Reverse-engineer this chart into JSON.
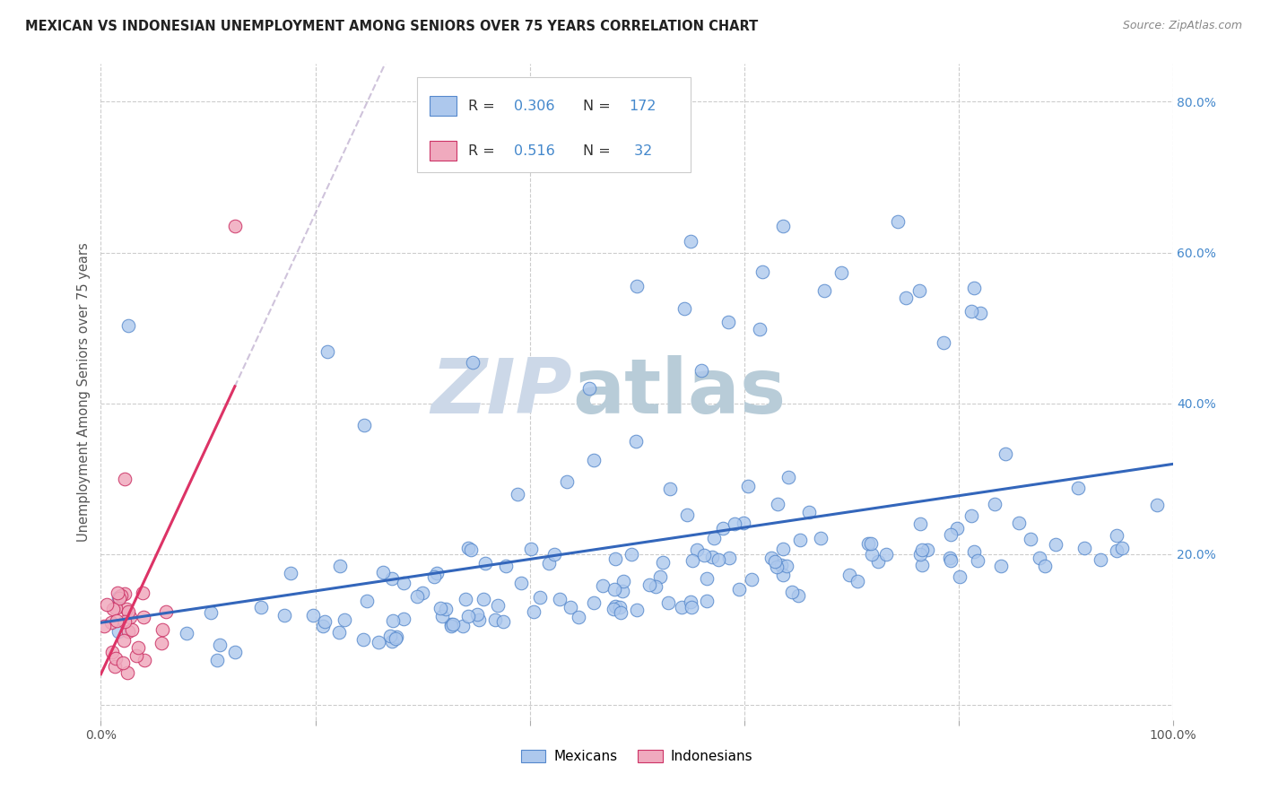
{
  "title": "MEXICAN VS INDONESIAN UNEMPLOYMENT AMONG SENIORS OVER 75 YEARS CORRELATION CHART",
  "source": "Source: ZipAtlas.com",
  "ylabel": "Unemployment Among Seniors over 75 years",
  "xlim": [
    0.0,
    1.0
  ],
  "ylim": [
    -0.02,
    0.85
  ],
  "xtick_positions": [
    0.0,
    0.2,
    0.4,
    0.6,
    0.8,
    1.0
  ],
  "xticklabels": [
    "0.0%",
    "",
    "",
    "",
    "",
    "100.0%"
  ],
  "ytick_positions": [
    0.0,
    0.2,
    0.4,
    0.6,
    0.8
  ],
  "yticklabels": [
    "",
    "20.0%",
    "40.0%",
    "60.0%",
    "80.0%"
  ],
  "mexican_color": "#adc8ed",
  "indonesian_color": "#f0aabe",
  "mexican_edge_color": "#5588cc",
  "indonesian_edge_color": "#cc3366",
  "mexican_line_color": "#3366bb",
  "indonesian_line_color": "#dd3366",
  "indonesian_dash_color": "#ccbbcc",
  "watermark_zip": "ZIP",
  "watermark_atlas": "atlas",
  "watermark_color": "#ccd8e8",
  "background_color": "#ffffff",
  "grid_color": "#cccccc",
  "ytick_color": "#4488cc",
  "xtick_color": "#555555",
  "title_color": "#222222",
  "source_color": "#888888",
  "ylabel_color": "#555555",
  "legend_border_color": "#cccccc",
  "r_n_color": "#4488cc",
  "mexican_R": 0.306,
  "mexican_N": 172,
  "indonesian_R": 0.516,
  "indonesian_N": 32
}
